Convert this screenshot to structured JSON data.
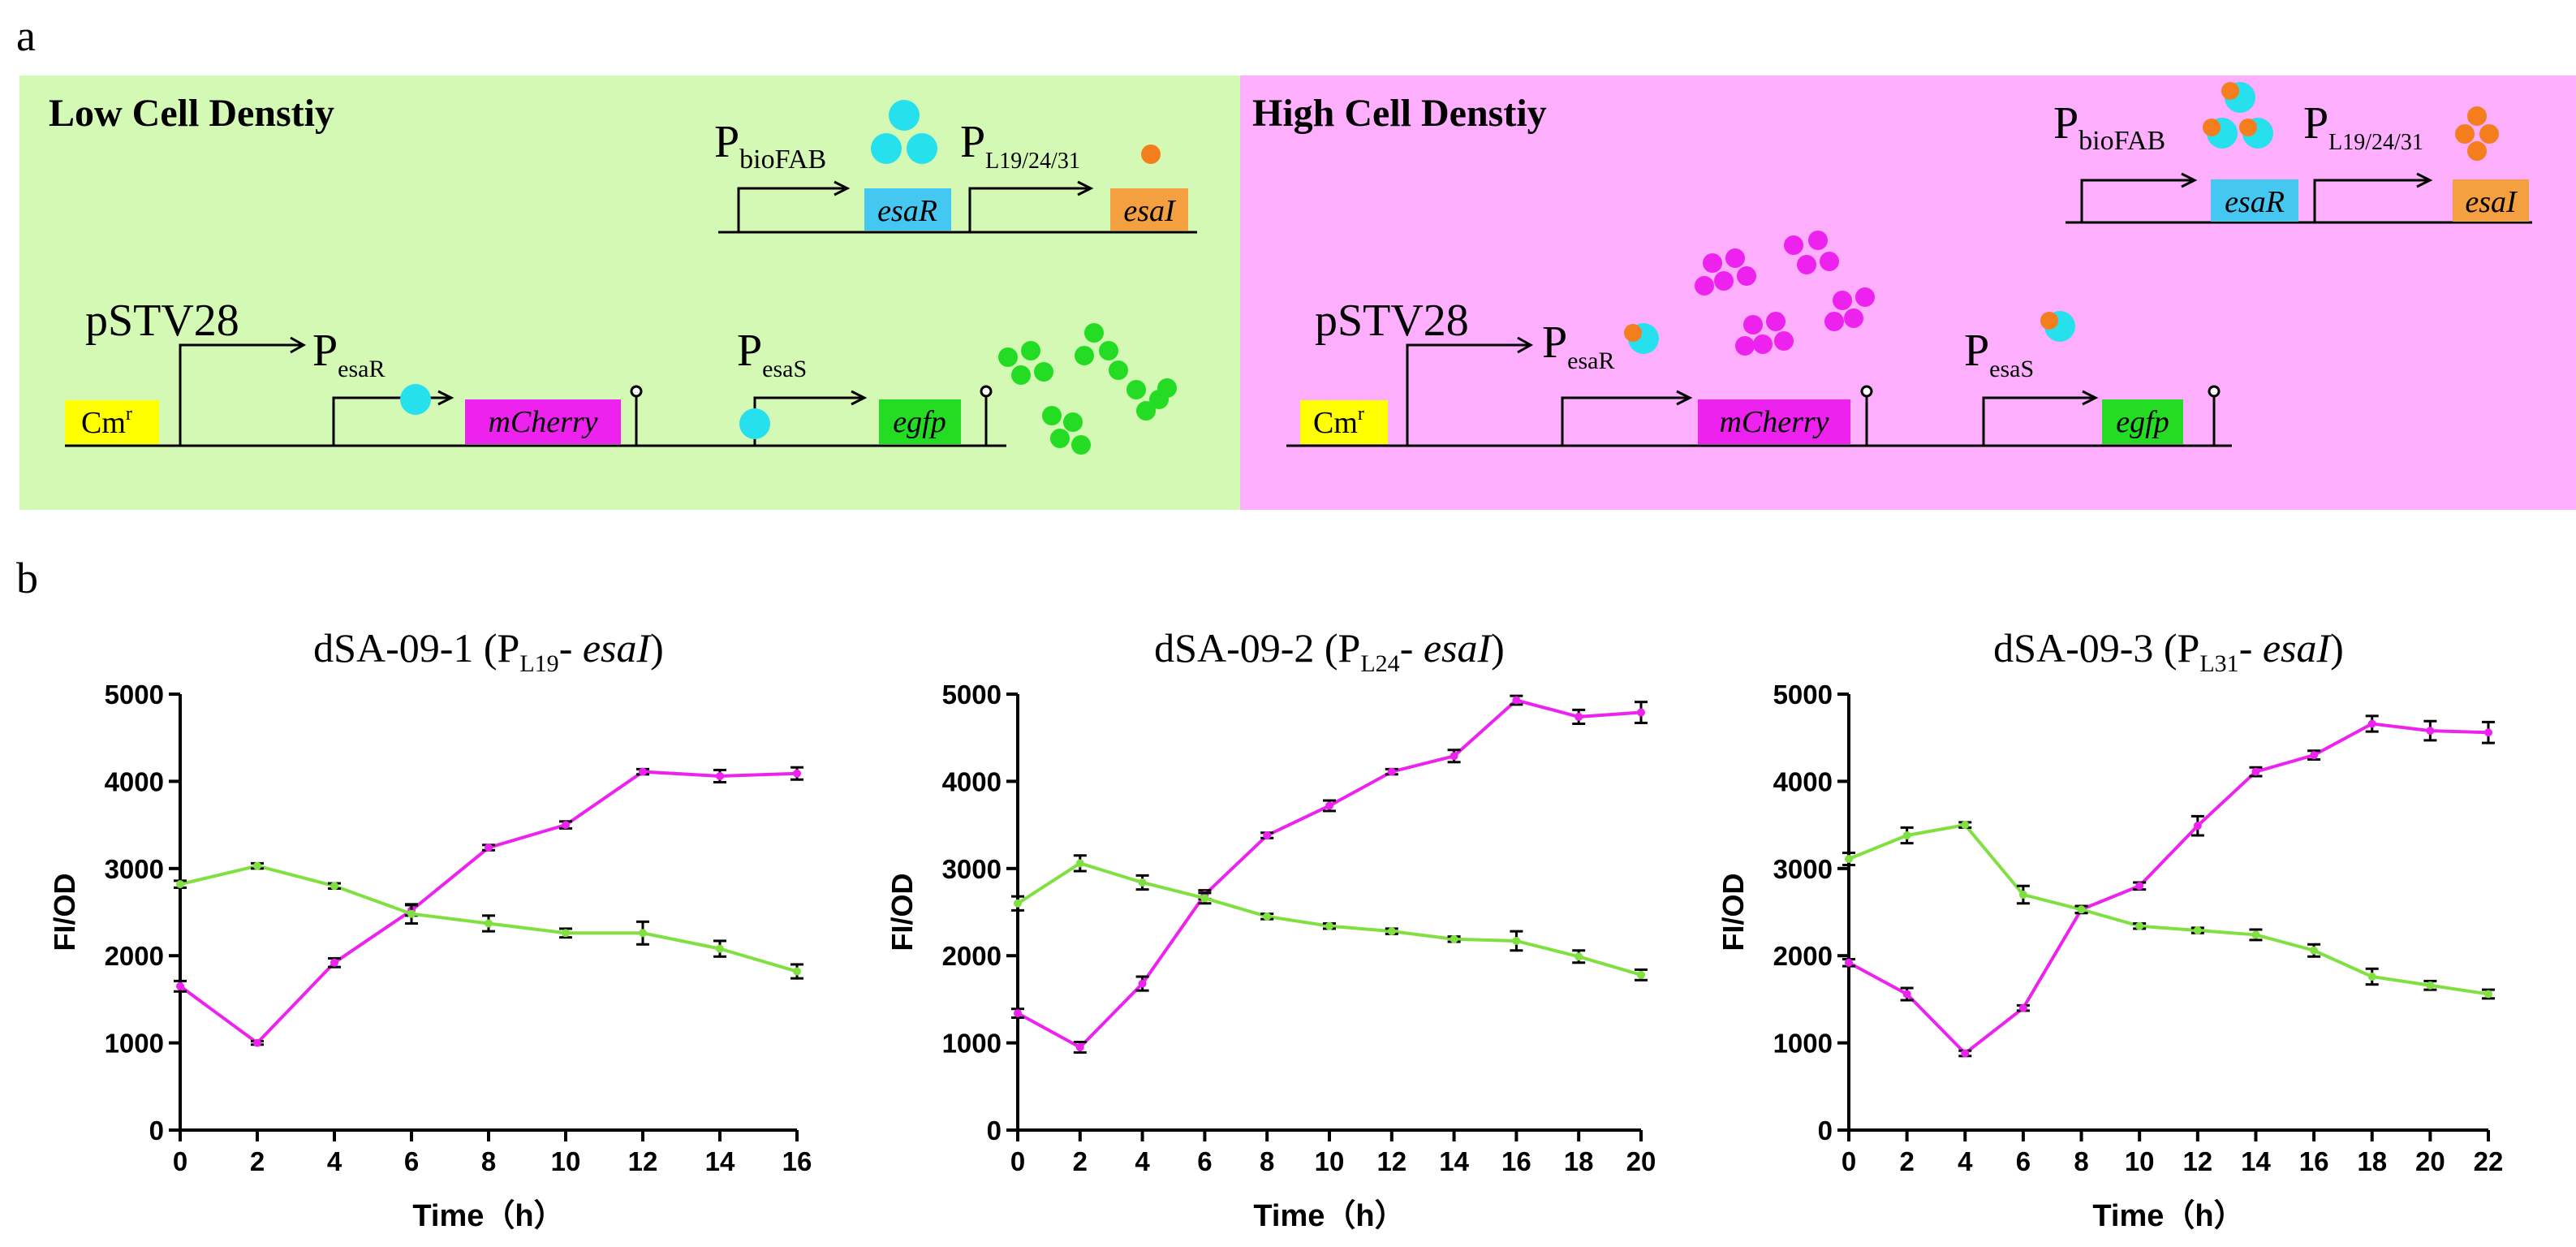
{
  "panel_a": {
    "label": "a",
    "low_title": "Low Cell Denstiy",
    "high_title": "High Cell Denstiy",
    "colors": {
      "low_bg": "#d4f9b5",
      "high_bg": "#fdaefd",
      "cyan": "#26e0ee",
      "orange": "#f47e1e",
      "magenta": "#ee22ee",
      "green": "#25dc25",
      "yellow": "#ffff00",
      "esaI_box": "#f5a040",
      "esaR_box": "#44c8f2"
    },
    "promoter_P": "P",
    "bioFAB_sub": "bioFAB",
    "L_sub": "L19/24/31",
    "esaR_sub": "esaR",
    "esaS_sub": "esaS",
    "pSTV28": "pSTV28",
    "esaR_gene": "esaR",
    "esaI_gene": "esaI",
    "mCherry_gene": "mCherry",
    "egfp_gene": "egfp",
    "cm_label": "Cm",
    "cm_sup": "r"
  },
  "panel_b": {
    "label": "b",
    "ylabel": "FI/OD",
    "xlabel": "Time（h）"
  },
  "chart_data": [
    {
      "type": "line",
      "title_prefix": "dSA-09-1 (P",
      "title_sub": "L19",
      "title_mid": "- ",
      "title_gene": "esaI",
      "title_suffix": ")",
      "xlabel": "Time（h）",
      "ylabel": "FI/OD",
      "x": [
        0,
        2,
        4,
        6,
        8,
        10,
        12,
        14,
        16
      ],
      "xlim": [
        0,
        16
      ],
      "ylim": [
        0,
        5000
      ],
      "yticks": [
        0,
        1000,
        2000,
        3000,
        4000,
        5000
      ],
      "series": [
        {
          "name": "mCherry",
          "color": "#ee22ee",
          "values": [
            1650,
            1000,
            1920,
            2520,
            3240,
            3500,
            4110,
            4060,
            4090
          ],
          "errors": [
            60,
            20,
            50,
            60,
            30,
            40,
            30,
            70,
            70
          ]
        },
        {
          "name": "egfp",
          "color": "#7fe040",
          "values": [
            2820,
            3030,
            2800,
            2480,
            2370,
            2260,
            2260,
            2080,
            1820
          ],
          "errors": [
            40,
            30,
            30,
            110,
            90,
            50,
            130,
            90,
            80
          ]
        }
      ]
    },
    {
      "type": "line",
      "title_prefix": "dSA-09-2 (P",
      "title_sub": "L24",
      "title_mid": "- ",
      "title_gene": "esaI",
      "title_suffix": ")",
      "xlabel": "Time（h）",
      "ylabel": "FI/OD",
      "x": [
        0,
        2,
        4,
        6,
        8,
        10,
        12,
        14,
        16,
        18,
        20
      ],
      "xlim": [
        0,
        20
      ],
      "ylim": [
        0,
        5000
      ],
      "yticks": [
        0,
        1000,
        2000,
        3000,
        4000,
        5000
      ],
      "series": [
        {
          "name": "mCherry",
          "color": "#ee22ee",
          "values": [
            1340,
            950,
            1680,
            2700,
            3380,
            3720,
            4110,
            4290,
            4930,
            4740,
            4790
          ],
          "errors": [
            50,
            60,
            80,
            50,
            30,
            60,
            30,
            70,
            50,
            80,
            120
          ]
        },
        {
          "name": "egfp",
          "color": "#7fe040",
          "values": [
            2600,
            3060,
            2840,
            2660,
            2450,
            2340,
            2280,
            2190,
            2170,
            1990,
            1780
          ],
          "errors": [
            80,
            90,
            80,
            60,
            30,
            30,
            30,
            30,
            110,
            70,
            60
          ]
        }
      ]
    },
    {
      "type": "line",
      "title_prefix": "dSA-09-3 (P",
      "title_sub": "L31",
      "title_mid": "- ",
      "title_gene": "esaI",
      "title_suffix": ")",
      "xlabel": "Time（h）",
      "ylabel": "FI/OD",
      "x": [
        0,
        2,
        4,
        6,
        8,
        10,
        12,
        14,
        16,
        18,
        20,
        22
      ],
      "xlim": [
        0,
        22
      ],
      "ylim": [
        0,
        5000
      ],
      "yticks": [
        0,
        1000,
        2000,
        3000,
        4000,
        5000
      ],
      "series": [
        {
          "name": "mCherry",
          "color": "#ee22ee",
          "values": [
            1920,
            1560,
            880,
            1400,
            2530,
            2800,
            3490,
            4110,
            4300,
            4660,
            4580,
            4560
          ],
          "errors": [
            40,
            70,
            30,
            30,
            40,
            40,
            110,
            50,
            50,
            90,
            110,
            120
          ]
        },
        {
          "name": "egfp",
          "color": "#7fe040",
          "values": [
            3110,
            3380,
            3500,
            2700,
            2530,
            2340,
            2290,
            2240,
            2060,
            1760,
            1660,
            1560
          ],
          "errors": [
            70,
            90,
            30,
            100,
            40,
            30,
            30,
            60,
            70,
            90,
            50,
            50
          ]
        }
      ]
    }
  ]
}
